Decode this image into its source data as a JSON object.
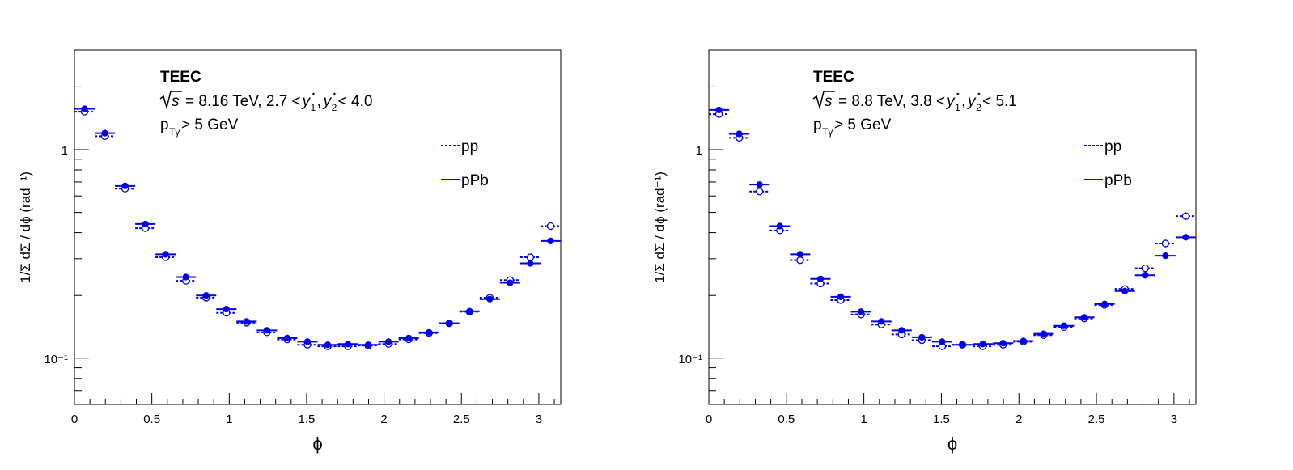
{
  "colors": {
    "pp": "#0000ee",
    "pPb": "#0000ee",
    "axis": "#000000"
  },
  "chart_data": [
    {
      "type": "scatter",
      "title": "TEEC",
      "energy_label": "= 8.16 TeV, 2.7 < ",
      "energy_range_end": " < 4.0",
      "cut_label": " > 5 GeV",
      "xlabel": "ϕ",
      "ylabel": "1/Σ dΣ / dϕ (rad⁻¹)",
      "xlim": [
        0,
        3.1416
      ],
      "ylim": [
        0.06,
        3.0
      ],
      "yscale": "log",
      "x_ticks": [
        "0",
        "0.5",
        "1",
        "1.5",
        "2",
        "2.5",
        "3"
      ],
      "y_ticks": [
        "1",
        "10⁻¹"
      ],
      "legend_position": "top-right",
      "x": [
        0.0654,
        0.1963,
        0.3272,
        0.4581,
        0.589,
        0.7199,
        0.8508,
        0.9817,
        1.1126,
        1.2435,
        1.3744,
        1.5053,
        1.6362,
        1.7671,
        1.898,
        2.0289,
        2.1598,
        2.2907,
        2.4216,
        2.5525,
        2.6834,
        2.8143,
        2.9452,
        3.0761
      ],
      "series": [
        {
          "name": "pp",
          "style": "dotted line, open circle",
          "values": [
            1.52,
            1.16,
            0.65,
            0.42,
            0.305,
            0.235,
            0.195,
            0.165,
            0.148,
            0.133,
            0.123,
            0.116,
            0.114,
            0.114,
            0.115,
            0.117,
            0.123,
            0.132,
            0.147,
            0.167,
            0.195,
            0.237,
            0.305,
            0.43
          ]
        },
        {
          "name": "pPb",
          "style": "solid line, filled circle",
          "values": [
            1.57,
            1.2,
            0.67,
            0.44,
            0.315,
            0.245,
            0.2,
            0.172,
            0.15,
            0.136,
            0.125,
            0.12,
            0.116,
            0.117,
            0.116,
            0.12,
            0.125,
            0.133,
            0.147,
            0.168,
            0.192,
            0.23,
            0.285,
            0.365
          ]
        }
      ]
    },
    {
      "type": "scatter",
      "title": "TEEC",
      "energy_label": "= 8.8 TeV, 3.8 < ",
      "energy_range_end": " < 5.1",
      "cut_label": " > 5 GeV",
      "xlabel": "ϕ",
      "ylabel": "1/Σ dΣ / dϕ (rad⁻¹)",
      "xlim": [
        0,
        3.1416
      ],
      "ylim": [
        0.06,
        3.0
      ],
      "yscale": "log",
      "x_ticks": [
        "0",
        "0.5",
        "1",
        "1.5",
        "2",
        "2.5",
        "3"
      ],
      "y_ticks": [
        "1",
        "10⁻¹"
      ],
      "legend_position": "top-right",
      "x": [
        0.0654,
        0.1963,
        0.3272,
        0.4581,
        0.589,
        0.7199,
        0.8508,
        0.9817,
        1.1126,
        1.2435,
        1.3744,
        1.5053,
        1.6362,
        1.7671,
        1.898,
        2.0289,
        2.1598,
        2.2907,
        2.4216,
        2.5525,
        2.6834,
        2.8143,
        2.9452,
        3.0761
      ],
      "series": [
        {
          "name": "pp",
          "style": "dotted line, open circle",
          "values": [
            1.48,
            1.14,
            0.63,
            0.41,
            0.295,
            0.228,
            0.19,
            0.162,
            0.145,
            0.13,
            0.122,
            0.114,
            0.116,
            0.114,
            0.116,
            0.12,
            0.129,
            0.141,
            0.155,
            0.18,
            0.215,
            0.27,
            0.355,
            0.48
          ]
        },
        {
          "name": "pPb",
          "style": "solid line, filled circle",
          "values": [
            1.55,
            1.19,
            0.68,
            0.43,
            0.315,
            0.24,
            0.197,
            0.167,
            0.15,
            0.136,
            0.126,
            0.12,
            0.116,
            0.117,
            0.118,
            0.121,
            0.131,
            0.143,
            0.157,
            0.182,
            0.21,
            0.25,
            0.31,
            0.38
          ]
        }
      ]
    }
  ]
}
